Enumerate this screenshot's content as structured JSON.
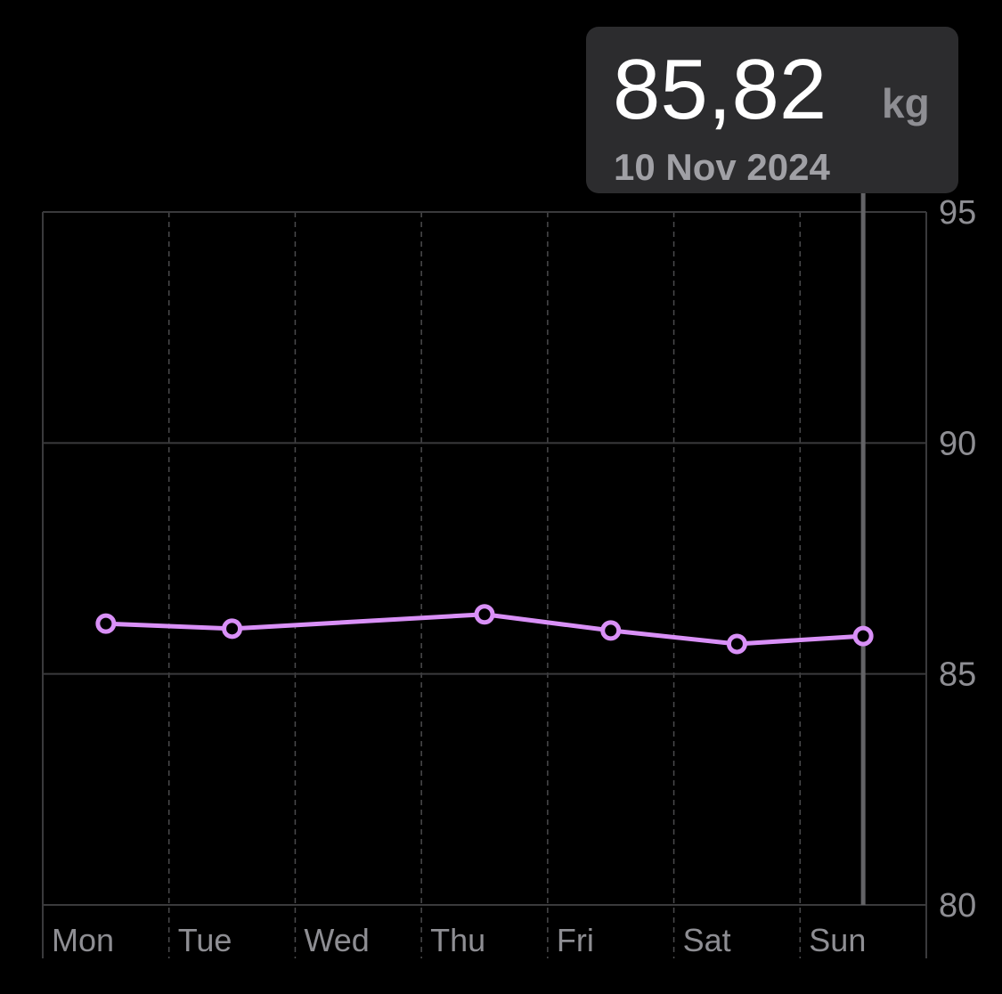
{
  "chart_data": {
    "type": "line",
    "categories": [
      "Mon",
      "Tue",
      "Wed",
      "Thu",
      "Fri",
      "Sat",
      "Sun"
    ],
    "series": [
      {
        "color": "#d990f7",
        "values": [
          86.09,
          85.98,
          null,
          86.29,
          85.94,
          85.65,
          85.82
        ],
        "value_labels": [
          null,
          null,
          null,
          null,
          null,
          null,
          "85,82"
        ]
      }
    ],
    "tooltip_unit": "kg",
    "tooltip_date": "10 Nov 2024",
    "ylim": [
      80,
      95
    ],
    "yticks": [
      80,
      85,
      90,
      95
    ],
    "grid": true
  }
}
